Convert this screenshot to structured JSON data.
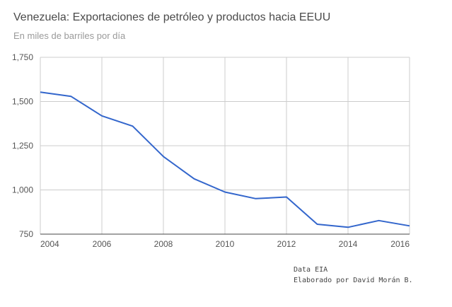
{
  "chart_data": {
    "type": "line",
    "title": "Venezuela: Exportaciones de petróleo y productos hacia EEUU",
    "subtitle": "En miles de barriles por día",
    "x": [
      2004,
      2005,
      2006,
      2007,
      2008,
      2009,
      2010,
      2011,
      2012,
      2013,
      2014,
      2015,
      2016
    ],
    "series": [
      {
        "values": [
          1553,
          1529,
          1419,
          1361,
          1189,
          1063,
          988,
          951,
          960,
          806,
          789,
          827,
          797
        ]
      }
    ],
    "xlim": [
      2004,
      2016
    ],
    "ylim": [
      750,
      1750
    ],
    "x_ticks": [
      2004,
      2006,
      2008,
      2010,
      2012,
      2014,
      2016
    ],
    "y_ticks": [
      750,
      1000,
      1250,
      1500,
      1750
    ],
    "y_tick_labels": [
      "750",
      "1,000",
      "1,250",
      "1,500",
      "1,750"
    ],
    "grid": true,
    "line_color": "#3366cc"
  },
  "notes": {
    "source": "Data EIA",
    "credit": "Elaborado por David Morán B."
  }
}
